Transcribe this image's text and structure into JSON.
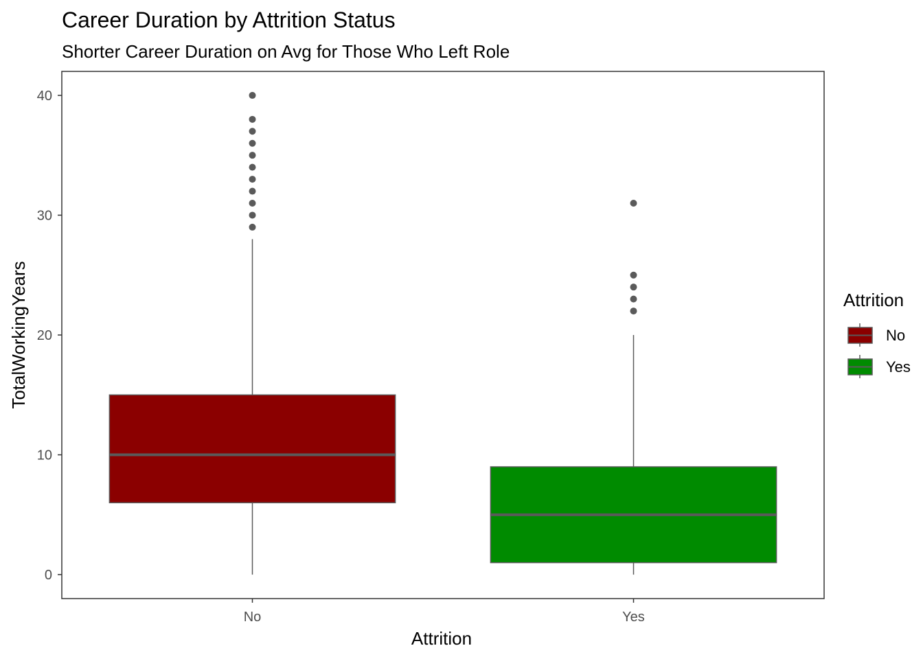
{
  "chart_data": {
    "type": "boxplot",
    "title": "Career Duration by Attrition Status",
    "subtitle": "Shorter Career Duration on Avg for Those Who Left Role",
    "xlabel": "Attrition",
    "ylabel": "TotalWorkingYears",
    "ylim": [
      -2,
      42
    ],
    "yticks": [
      0,
      10,
      20,
      30,
      40
    ],
    "grid": false,
    "categories": [
      "No",
      "Yes"
    ],
    "boxes": [
      {
        "category": "No",
        "whisker_low": 0,
        "q1": 6,
        "median": 10,
        "q3": 15,
        "whisker_high": 28,
        "outliers": [
          29,
          30,
          31,
          32,
          33,
          34,
          35,
          36,
          37,
          38,
          40
        ],
        "color": "#8b0000"
      },
      {
        "category": "Yes",
        "whisker_low": 0,
        "q1": 1,
        "median": 5,
        "q3": 9,
        "whisker_high": 20,
        "outliers": [
          22,
          23,
          24,
          25,
          31
        ],
        "color": "#008b00"
      }
    ],
    "legend": {
      "title": "Attrition",
      "position": "right",
      "items": [
        {
          "label": "No",
          "color": "#8b0000"
        },
        {
          "label": "Yes",
          "color": "#008b00"
        }
      ]
    }
  }
}
